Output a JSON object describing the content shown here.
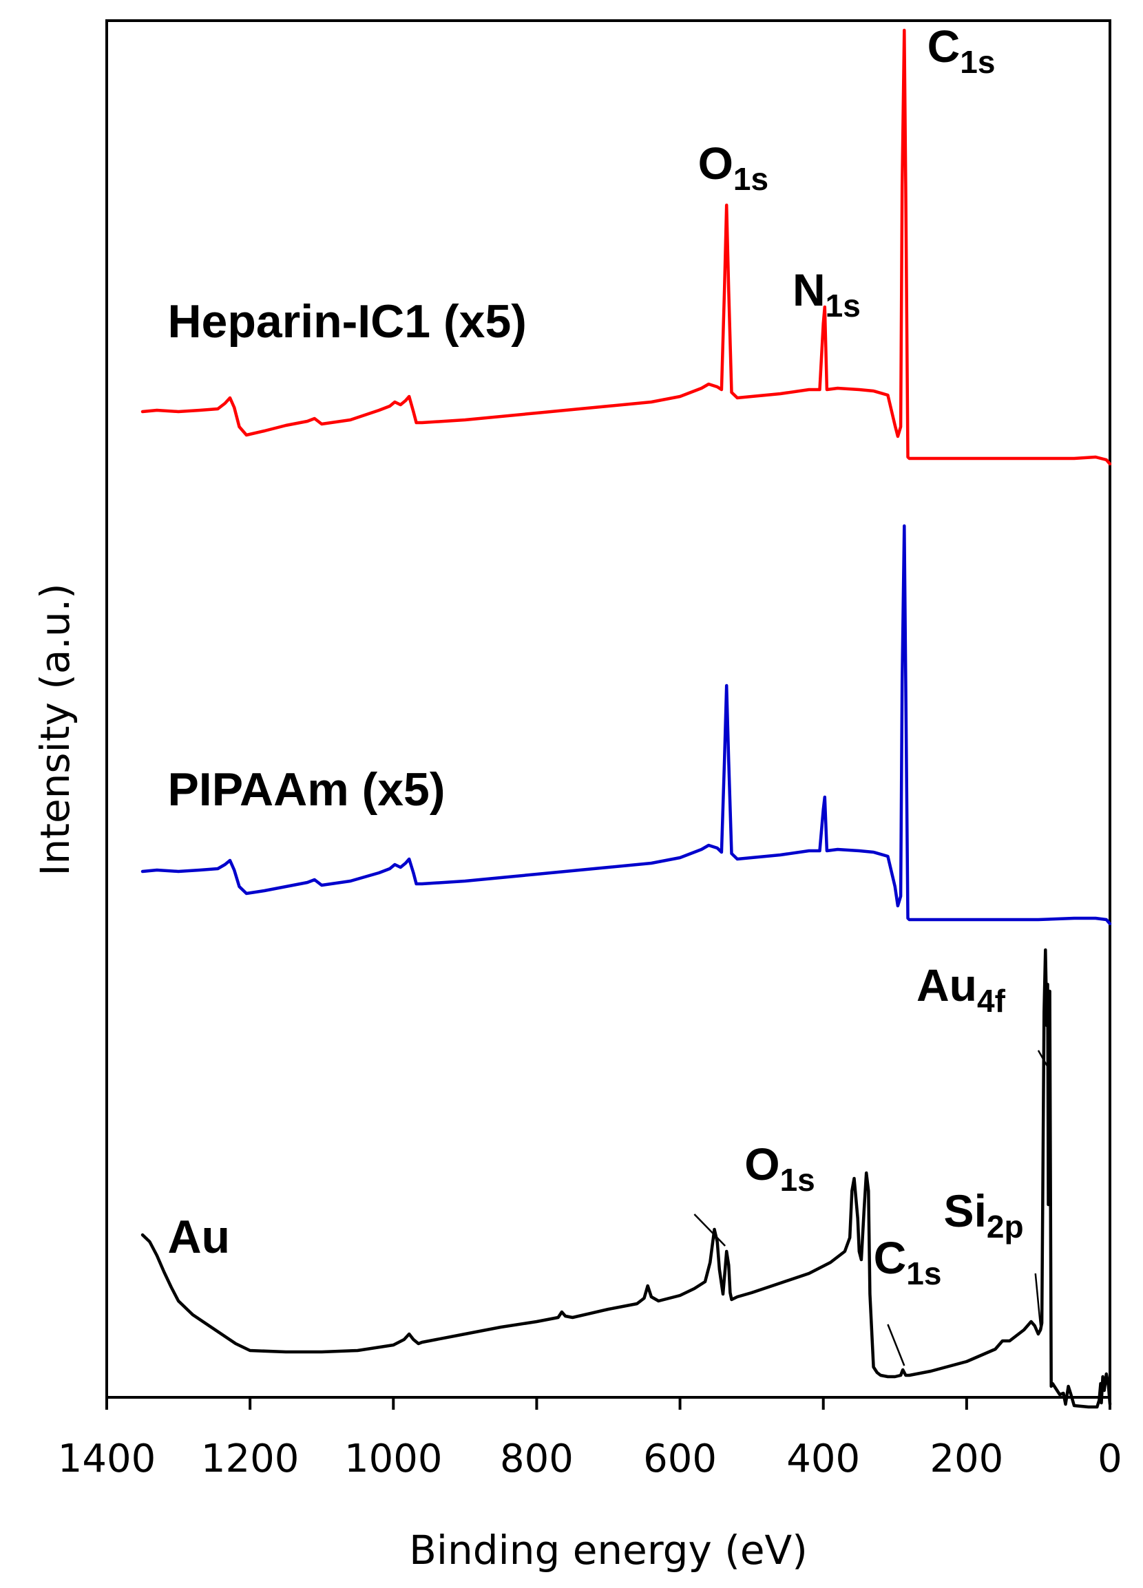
{
  "chart_data": {
    "type": "line",
    "xlabel": "Binding energy (eV)",
    "ylabel": "Intensity (a.u.)",
    "xlim": [
      1400,
      0
    ],
    "x_reversed": true,
    "xticks": [
      1400,
      1200,
      1000,
      800,
      600,
      400,
      200,
      0
    ],
    "ylim": [
      0,
      100
    ],
    "grid": false,
    "legend": "none",
    "series": [
      {
        "name": "Heparin-IC1 (x5)",
        "color": "#ff0000",
        "x": [
          1350,
          1330,
          1300,
          1270,
          1245,
          1235,
          1228,
          1222,
          1215,
          1205,
          1180,
          1150,
          1120,
          1110,
          1100,
          1060,
          1020,
          1005,
          998,
          990,
          983,
          978,
          972,
          968,
          960,
          900,
          800,
          700,
          640,
          600,
          570,
          560,
          548,
          542,
          538,
          535,
          532,
          528,
          520,
          500,
          460,
          420,
          405,
          400,
          398,
          395,
          380,
          350,
          330,
          310,
          300,
          296,
          292,
          290,
          287,
          285,
          282,
          280,
          250,
          200,
          100,
          50,
          20,
          5,
          0
        ],
        "y": [
          71.6,
          71.7,
          71.6,
          71.7,
          71.8,
          72.2,
          72.6,
          71.9,
          70.5,
          69.9,
          70.2,
          70.6,
          70.9,
          71.1,
          70.7,
          71.0,
          71.7,
          72.0,
          72.3,
          72.1,
          72.4,
          72.7,
          71.6,
          70.8,
          70.8,
          71.0,
          71.5,
          72.0,
          72.3,
          72.7,
          73.3,
          73.6,
          73.4,
          73.2,
          80.4,
          86.6,
          80.4,
          73.0,
          72.6,
          72.7,
          72.9,
          73.2,
          73.2,
          78.0,
          79.2,
          73.2,
          73.3,
          73.2,
          73.1,
          72.8,
          70.6,
          69.8,
          70.5,
          88.0,
          99.3,
          88.0,
          68.3,
          68.2,
          68.2,
          68.2,
          68.2,
          68.2,
          68.3,
          68.1,
          67.8
        ]
      },
      {
        "name": "PIPAAm (x5)",
        "color": "#0000cc",
        "x": [
          1350,
          1330,
          1300,
          1270,
          1245,
          1235,
          1228,
          1222,
          1215,
          1205,
          1180,
          1150,
          1120,
          1110,
          1100,
          1060,
          1020,
          1005,
          998,
          990,
          983,
          978,
          972,
          968,
          960,
          900,
          800,
          700,
          640,
          600,
          570,
          560,
          548,
          542,
          538,
          535,
          532,
          528,
          520,
          500,
          460,
          420,
          405,
          400,
          398,
          395,
          380,
          350,
          330,
          310,
          300,
          296,
          292,
          290,
          287,
          285,
          282,
          280,
          250,
          200,
          100,
          50,
          20,
          5,
          0
        ],
        "y": [
          38.2,
          38.3,
          38.2,
          38.3,
          38.4,
          38.7,
          39.0,
          38.3,
          37.1,
          36.6,
          36.8,
          37.1,
          37.4,
          37.6,
          37.2,
          37.5,
          38.1,
          38.4,
          38.7,
          38.5,
          38.8,
          39.1,
          38.1,
          37.3,
          37.3,
          37.5,
          38.0,
          38.5,
          38.8,
          39.2,
          39.8,
          40.1,
          39.9,
          39.6,
          46.2,
          51.7,
          46.2,
          39.5,
          39.1,
          39.2,
          39.4,
          39.7,
          39.7,
          42.7,
          43.6,
          39.7,
          39.8,
          39.7,
          39.6,
          39.3,
          37.1,
          35.7,
          36.4,
          52.0,
          63.3,
          52.0,
          34.8,
          34.7,
          34.7,
          34.7,
          34.7,
          34.8,
          34.8,
          34.7,
          34.4
        ]
      },
      {
        "name": "Au",
        "color": "#000000",
        "x": [
          1350,
          1340,
          1330,
          1320,
          1310,
          1300,
          1280,
          1260,
          1240,
          1220,
          1200,
          1150,
          1100,
          1050,
          1000,
          985,
          978,
          972,
          965,
          960,
          900,
          850,
          800,
          770,
          765,
          760,
          750,
          700,
          660,
          650,
          645,
          640,
          630,
          600,
          580,
          565,
          558,
          552,
          548,
          545,
          540,
          537,
          535,
          532,
          530,
          528,
          520,
          500,
          460,
          420,
          390,
          370,
          363,
          360,
          357,
          352,
          350,
          347,
          343,
          340,
          337,
          335,
          330,
          325,
          320,
          310,
          300,
          292,
          289,
          285,
          280,
          250,
          200,
          160,
          150,
          140,
          120,
          110,
          105,
          100,
          97,
          95,
          92,
          90,
          88,
          87,
          86,
          84,
          82,
          80,
          75,
          70,
          65,
          62,
          58,
          55,
          50,
          30,
          18,
          15,
          13,
          12,
          10,
          8,
          5,
          2,
          0
        ],
        "y": [
          11.8,
          11.3,
          10.3,
          9.1,
          8.0,
          7.0,
          6.0,
          5.3,
          4.6,
          3.9,
          3.4,
          3.3,
          3.3,
          3.4,
          3.8,
          4.2,
          4.6,
          4.2,
          3.9,
          4.0,
          4.6,
          5.1,
          5.5,
          5.8,
          6.2,
          5.9,
          5.8,
          6.4,
          6.8,
          7.2,
          8.1,
          7.3,
          7.0,
          7.4,
          7.9,
          8.4,
          9.8,
          12.2,
          11.3,
          9.3,
          7.5,
          9.3,
          10.6,
          9.6,
          7.6,
          7.1,
          7.3,
          7.6,
          8.3,
          9.0,
          9.8,
          10.6,
          11.6,
          15.0,
          15.9,
          13.0,
          10.6,
          10.0,
          13.7,
          16.3,
          15.0,
          7.5,
          2.2,
          1.8,
          1.6,
          1.5,
          1.5,
          1.6,
          2.0,
          1.6,
          1.6,
          1.9,
          2.6,
          3.5,
          4.1,
          4.1,
          4.9,
          5.5,
          5.2,
          4.6,
          4.9,
          5.4,
          28.0,
          32.5,
          27.0,
          30.0,
          14.0,
          29.5,
          0.8,
          1.0,
          0.6,
          0.2,
          0.3,
          -0.5,
          0.8,
          0.3,
          -0.6,
          -0.7,
          -0.7,
          -0.2,
          1.0,
          -0.4,
          1.5,
          0.5,
          1.7,
          0.8,
          -0.5
        ]
      }
    ],
    "series_labels": [
      {
        "text": "Heparin-IC1 (x5)",
        "x": 1315,
        "y": 77.0
      },
      {
        "text": "PIPAAm (x5)",
        "x": 1315,
        "y": 43.0
      },
      {
        "text": "Au",
        "x": 1315,
        "y": 10.5
      }
    ],
    "annotations": [
      {
        "main": "C",
        "sub": "1s",
        "x": 255,
        "y": 97.0
      },
      {
        "main": "O",
        "sub": "1s",
        "x": 575,
        "y": 88.5
      },
      {
        "main": "N",
        "sub": "1s",
        "x": 443,
        "y": 79.3
      },
      {
        "main": "Au",
        "sub": "4f",
        "x": 270,
        "y": 28.8,
        "leader": [
          [
            100,
            25.2
          ],
          [
            88,
            24.1
          ]
        ]
      },
      {
        "main": "O",
        "sub": "1s",
        "x": 510,
        "y": 15.8,
        "leader": [
          [
            580,
            13.3
          ],
          [
            537,
            11.0
          ]
        ]
      },
      {
        "main": "Si",
        "sub": "2p",
        "x": 232,
        "y": 12.4,
        "leader": [
          [
            104,
            9.0
          ],
          [
            97,
            5.2
          ]
        ]
      },
      {
        "main": "C",
        "sub": "1s",
        "x": 330,
        "y": 9.0,
        "leader": [
          [
            310,
            5.3
          ],
          [
            287,
            2.3
          ]
        ]
      }
    ]
  }
}
